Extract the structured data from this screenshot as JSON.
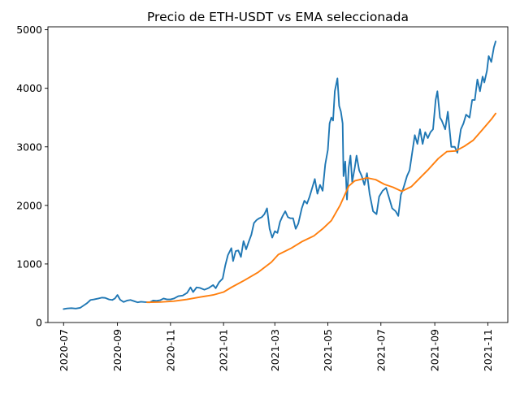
{
  "chart_data": {
    "type": "line",
    "title": "Precio de ETH-USDT vs EMA seleccionada",
    "xlabel": "",
    "ylabel": "",
    "grid": false,
    "legend": "none",
    "xlim": [
      "2020-06-13",
      "2021-11-24"
    ],
    "ylim": [
      0,
      5050
    ],
    "x_ticks": [
      "2020-07",
      "2020-09",
      "2020-11",
      "2021-01",
      "2021-03",
      "2021-05",
      "2021-07",
      "2021-09",
      "2021-11"
    ],
    "y_ticks": [
      0,
      1000,
      2000,
      3000,
      4000,
      5000
    ],
    "series": [
      {
        "color": "#1f77b4",
        "points": [
          [
            "2020-07-01",
            230
          ],
          [
            "2020-07-05",
            240
          ],
          [
            "2020-07-10",
            245
          ],
          [
            "2020-07-15",
            238
          ],
          [
            "2020-07-20",
            250
          ],
          [
            "2020-07-25",
            300
          ],
          [
            "2020-07-28",
            330
          ],
          [
            "2020-08-01",
            385
          ],
          [
            "2020-08-05",
            395
          ],
          [
            "2020-08-10",
            410
          ],
          [
            "2020-08-14",
            425
          ],
          [
            "2020-08-18",
            420
          ],
          [
            "2020-08-22",
            395
          ],
          [
            "2020-08-26",
            385
          ],
          [
            "2020-08-29",
            410
          ],
          [
            "2020-09-01",
            470
          ],
          [
            "2020-09-04",
            390
          ],
          [
            "2020-09-08",
            350
          ],
          [
            "2020-09-12",
            375
          ],
          [
            "2020-09-16",
            385
          ],
          [
            "2020-09-20",
            365
          ],
          [
            "2020-09-24",
            345
          ],
          [
            "2020-09-28",
            355
          ],
          [
            "2020-10-02",
            350
          ],
          [
            "2020-10-08",
            345
          ],
          [
            "2020-10-12",
            375
          ],
          [
            "2020-10-16",
            370
          ],
          [
            "2020-10-20",
            380
          ],
          [
            "2020-10-24",
            410
          ],
          [
            "2020-10-28",
            395
          ],
          [
            "2020-11-01",
            395
          ],
          [
            "2020-11-05",
            410
          ],
          [
            "2020-11-10",
            450
          ],
          [
            "2020-11-15",
            460
          ],
          [
            "2020-11-20",
            505
          ],
          [
            "2020-11-24",
            600
          ],
          [
            "2020-11-27",
            520
          ],
          [
            "2020-12-01",
            600
          ],
          [
            "2020-12-05",
            590
          ],
          [
            "2020-12-10",
            560
          ],
          [
            "2020-12-15",
            590
          ],
          [
            "2020-12-20",
            640
          ],
          [
            "2020-12-23",
            585
          ],
          [
            "2020-12-27",
            690
          ],
          [
            "2020-12-31",
            750
          ],
          [
            "2021-01-03",
            975
          ],
          [
            "2021-01-06",
            1150
          ],
          [
            "2021-01-10",
            1270
          ],
          [
            "2021-01-12",
            1050
          ],
          [
            "2021-01-15",
            1220
          ],
          [
            "2021-01-18",
            1230
          ],
          [
            "2021-01-21",
            1120
          ],
          [
            "2021-01-24",
            1390
          ],
          [
            "2021-01-27",
            1250
          ],
          [
            "2021-01-30",
            1380
          ],
          [
            "2021-02-02",
            1500
          ],
          [
            "2021-02-05",
            1700
          ],
          [
            "2021-02-08",
            1750
          ],
          [
            "2021-02-11",
            1780
          ],
          [
            "2021-02-14",
            1800
          ],
          [
            "2021-02-17",
            1850
          ],
          [
            "2021-02-20",
            1950
          ],
          [
            "2021-02-23",
            1600
          ],
          [
            "2021-02-26",
            1450
          ],
          [
            "2021-03-01",
            1560
          ],
          [
            "2021-03-04",
            1530
          ],
          [
            "2021-03-07",
            1720
          ],
          [
            "2021-03-10",
            1820
          ],
          [
            "2021-03-13",
            1900
          ],
          [
            "2021-03-16",
            1800
          ],
          [
            "2021-03-19",
            1780
          ],
          [
            "2021-03-22",
            1780
          ],
          [
            "2021-03-25",
            1600
          ],
          [
            "2021-03-28",
            1690
          ],
          [
            "2021-04-01",
            1950
          ],
          [
            "2021-04-04",
            2080
          ],
          [
            "2021-04-07",
            2030
          ],
          [
            "2021-04-10",
            2150
          ],
          [
            "2021-04-13",
            2300
          ],
          [
            "2021-04-16",
            2450
          ],
          [
            "2021-04-19",
            2200
          ],
          [
            "2021-04-22",
            2350
          ],
          [
            "2021-04-25",
            2250
          ],
          [
            "2021-04-28",
            2700
          ],
          [
            "2021-05-01",
            2950
          ],
          [
            "2021-05-03",
            3400
          ],
          [
            "2021-05-05",
            3500
          ],
          [
            "2021-05-07",
            3450
          ],
          [
            "2021-05-09",
            3950
          ],
          [
            "2021-05-12",
            4170
          ],
          [
            "2021-05-14",
            3700
          ],
          [
            "2021-05-16",
            3600
          ],
          [
            "2021-05-18",
            3400
          ],
          [
            "2021-05-19",
            2500
          ],
          [
            "2021-05-21",
            2750
          ],
          [
            "2021-05-23",
            2100
          ],
          [
            "2021-05-25",
            2650
          ],
          [
            "2021-05-27",
            2850
          ],
          [
            "2021-05-29",
            2400
          ],
          [
            "2021-06-01",
            2650
          ],
          [
            "2021-06-03",
            2850
          ],
          [
            "2021-06-06",
            2600
          ],
          [
            "2021-06-09",
            2500
          ],
          [
            "2021-06-12",
            2350
          ],
          [
            "2021-06-15",
            2550
          ],
          [
            "2021-06-18",
            2200
          ],
          [
            "2021-06-22",
            1900
          ],
          [
            "2021-06-26",
            1850
          ],
          [
            "2021-06-29",
            2150
          ],
          [
            "2021-07-03",
            2250
          ],
          [
            "2021-07-07",
            2300
          ],
          [
            "2021-07-10",
            2150
          ],
          [
            "2021-07-14",
            1950
          ],
          [
            "2021-07-18",
            1900
          ],
          [
            "2021-07-21",
            1820
          ],
          [
            "2021-07-24",
            2180
          ],
          [
            "2021-07-27",
            2300
          ],
          [
            "2021-07-31",
            2500
          ],
          [
            "2021-08-03",
            2600
          ],
          [
            "2021-08-06",
            2900
          ],
          [
            "2021-08-09",
            3200
          ],
          [
            "2021-08-12",
            3050
          ],
          [
            "2021-08-15",
            3300
          ],
          [
            "2021-08-18",
            3050
          ],
          [
            "2021-08-21",
            3250
          ],
          [
            "2021-08-24",
            3150
          ],
          [
            "2021-08-27",
            3250
          ],
          [
            "2021-08-30",
            3300
          ],
          [
            "2021-09-02",
            3800
          ],
          [
            "2021-09-04",
            3950
          ],
          [
            "2021-09-07",
            3500
          ],
          [
            "2021-09-09",
            3450
          ],
          [
            "2021-09-13",
            3300
          ],
          [
            "2021-09-16",
            3600
          ],
          [
            "2021-09-20",
            3000
          ],
          [
            "2021-09-24",
            3000
          ],
          [
            "2021-09-27",
            2900
          ],
          [
            "2021-10-01",
            3300
          ],
          [
            "2021-10-04",
            3400
          ],
          [
            "2021-10-07",
            3550
          ],
          [
            "2021-10-11",
            3500
          ],
          [
            "2021-10-14",
            3800
          ],
          [
            "2021-10-17",
            3800
          ],
          [
            "2021-10-20",
            4150
          ],
          [
            "2021-10-23",
            3950
          ],
          [
            "2021-10-26",
            4200
          ],
          [
            "2021-10-28",
            4100
          ],
          [
            "2021-10-31",
            4300
          ],
          [
            "2021-11-02",
            4550
          ],
          [
            "2021-11-05",
            4450
          ],
          [
            "2021-11-08",
            4700
          ],
          [
            "2021-11-10",
            4800
          ]
        ]
      },
      {
        "color": "#ff7f0e",
        "points": [
          [
            "2020-10-05",
            345
          ],
          [
            "2020-10-20",
            350
          ],
          [
            "2020-11-05",
            365
          ],
          [
            "2020-11-20",
            395
          ],
          [
            "2020-12-05",
            435
          ],
          [
            "2020-12-20",
            470
          ],
          [
            "2021-01-01",
            520
          ],
          [
            "2021-01-10",
            600
          ],
          [
            "2021-01-25",
            720
          ],
          [
            "2021-02-10",
            860
          ],
          [
            "2021-02-25",
            1030
          ],
          [
            "2021-03-05",
            1160
          ],
          [
            "2021-03-20",
            1270
          ],
          [
            "2021-04-01",
            1380
          ],
          [
            "2021-04-15",
            1480
          ],
          [
            "2021-04-25",
            1600
          ],
          [
            "2021-05-05",
            1740
          ],
          [
            "2021-05-15",
            2000
          ],
          [
            "2021-05-25",
            2330
          ],
          [
            "2021-06-01",
            2420
          ],
          [
            "2021-06-15",
            2470
          ],
          [
            "2021-06-25",
            2440
          ],
          [
            "2021-07-05",
            2360
          ],
          [
            "2021-07-15",
            2310
          ],
          [
            "2021-07-25",
            2240
          ],
          [
            "2021-08-05",
            2320
          ],
          [
            "2021-08-15",
            2470
          ],
          [
            "2021-08-25",
            2620
          ],
          [
            "2021-09-05",
            2800
          ],
          [
            "2021-09-15",
            2920
          ],
          [
            "2021-09-25",
            2930
          ],
          [
            "2021-10-05",
            3010
          ],
          [
            "2021-10-15",
            3110
          ],
          [
            "2021-10-25",
            3280
          ],
          [
            "2021-11-05",
            3470
          ],
          [
            "2021-11-10",
            3570
          ]
        ]
      }
    ]
  }
}
